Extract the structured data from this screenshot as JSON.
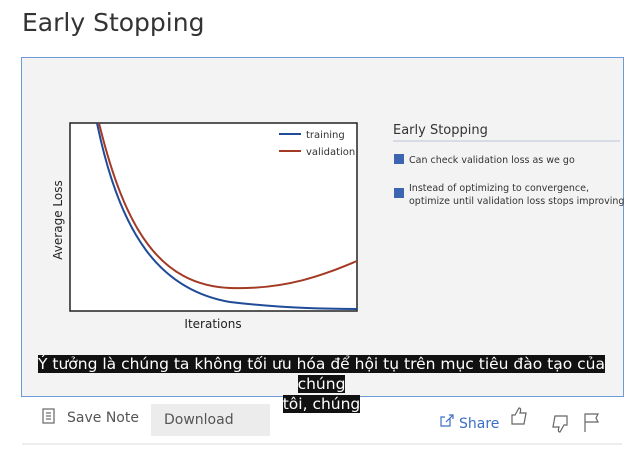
{
  "page_title": "Early Stopping",
  "slide": {
    "chart": {
      "y_label": "Average Loss",
      "x_label": "Iterations",
      "legend": [
        "training",
        "validation"
      ]
    },
    "panel": {
      "title": "Early Stopping",
      "bullets": [
        "Can check validation loss as we go",
        "Instead of optimizing to convergence,",
        "optimize until validation loss stops improving"
      ]
    }
  },
  "caption": [
    "Ý tưởng là chúng ta không tối ưu hóa để hội tụ trên mục tiêu đào tạo của chúng",
    "tôi, chúng"
  ],
  "toolbar": {
    "save_note": "Save Note",
    "download": "Download",
    "share": "Share"
  }
}
